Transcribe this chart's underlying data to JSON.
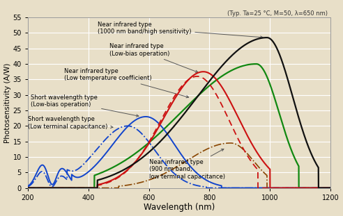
{
  "title_note": "(Typ. Ta=25 °C, M=50, λ=650 nm)",
  "xlabel": "Wavelength (nm)",
  "ylabel": "Photosensitivity (A/W)",
  "xlim": [
    200,
    1200
  ],
  "ylim": [
    0,
    55
  ],
  "yticks": [
    0,
    5,
    10,
    15,
    20,
    25,
    30,
    35,
    40,
    45,
    50,
    55
  ],
  "xticks": [
    200,
    400,
    600,
    800,
    1000,
    1200
  ],
  "bg_color": "#e8dfc8",
  "grid_color": "#ffffff"
}
